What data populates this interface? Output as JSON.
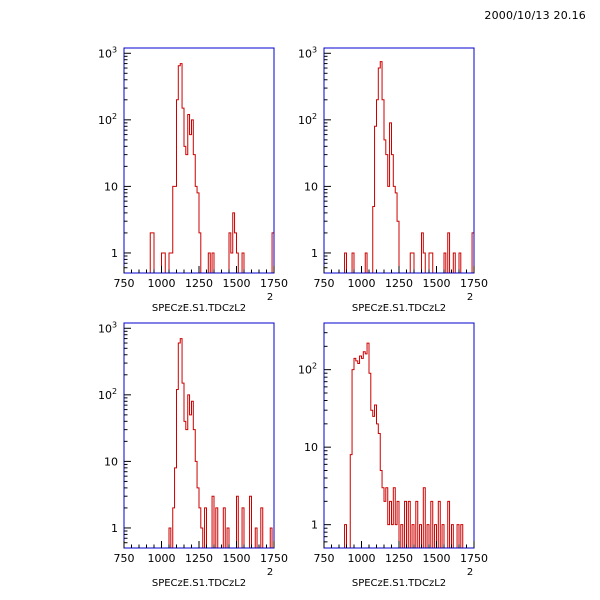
{
  "timestamp": "2000/10/13   20.16",
  "colors": {
    "frame": "#0000cc",
    "hist": "#cc0000",
    "text": "#000000"
  },
  "chart_data": [
    {
      "type": "histogram",
      "xlabel": "SPECzE.S1.TDCzL2",
      "exponent_label": "2",
      "xlim": [
        750,
        1750
      ],
      "xticks": [
        "750",
        "1000",
        "1250",
        "1500",
        "1750"
      ],
      "yscale": "log",
      "ylim": [
        0.5,
        1200
      ],
      "yticks": [
        {
          "value": 1,
          "label": "1",
          "exp": ""
        },
        {
          "value": 10,
          "label": "10",
          "exp": ""
        },
        {
          "value": 100,
          "label": "10",
          "exp": "2"
        },
        {
          "value": 1000,
          "label": "10",
          "exp": "3"
        }
      ],
      "bins": [
        [
          925,
          950,
          2
        ],
        [
          1000,
          1025,
          1
        ],
        [
          1050,
          1075,
          1
        ],
        [
          1075,
          1100,
          10
        ],
        [
          1100,
          1112,
          200
        ],
        [
          1112,
          1125,
          650
        ],
        [
          1125,
          1137,
          700
        ],
        [
          1137,
          1150,
          150
        ],
        [
          1150,
          1162,
          40
        ],
        [
          1162,
          1175,
          30
        ],
        [
          1175,
          1187,
          120
        ],
        [
          1187,
          1200,
          60
        ],
        [
          1200,
          1212,
          100
        ],
        [
          1212,
          1225,
          30
        ],
        [
          1225,
          1237,
          10
        ],
        [
          1237,
          1250,
          8
        ],
        [
          1250,
          1262,
          2
        ],
        [
          1312,
          1325,
          1
        ],
        [
          1337,
          1350,
          1
        ],
        [
          1450,
          1462,
          2
        ],
        [
          1462,
          1475,
          1
        ],
        [
          1475,
          1487,
          4
        ],
        [
          1487,
          1500,
          2
        ],
        [
          1500,
          1512,
          1
        ],
        [
          1537,
          1550,
          1
        ],
        [
          1737,
          1750,
          2
        ]
      ]
    },
    {
      "type": "histogram",
      "xlabel": "SPECzE.S1.TDCzL2",
      "exponent_label": "2",
      "xlim": [
        750,
        1750
      ],
      "xticks": [
        "750",
        "1000",
        "1250",
        "1500",
        "1750"
      ],
      "yscale": "log",
      "ylim": [
        0.5,
        1200
      ],
      "yticks": [
        {
          "value": 1,
          "label": "1",
          "exp": ""
        },
        {
          "value": 10,
          "label": "10",
          "exp": ""
        },
        {
          "value": 100,
          "label": "10",
          "exp": "2"
        },
        {
          "value": 1000,
          "label": "10",
          "exp": "3"
        }
      ],
      "bins": [
        [
          887,
          900,
          1
        ],
        [
          937,
          950,
          1
        ],
        [
          1025,
          1037,
          1
        ],
        [
          1075,
          1087,
          5
        ],
        [
          1087,
          1100,
          80
        ],
        [
          1100,
          1112,
          200
        ],
        [
          1112,
          1125,
          600
        ],
        [
          1125,
          1137,
          750
        ],
        [
          1137,
          1150,
          200
        ],
        [
          1150,
          1162,
          50
        ],
        [
          1162,
          1175,
          30
        ],
        [
          1175,
          1187,
          10
        ],
        [
          1187,
          1200,
          90
        ],
        [
          1200,
          1212,
          30
        ],
        [
          1212,
          1225,
          10
        ],
        [
          1225,
          1237,
          8
        ],
        [
          1237,
          1250,
          3
        ],
        [
          1325,
          1350,
          1
        ],
        [
          1400,
          1412,
          2
        ],
        [
          1412,
          1425,
          1
        ],
        [
          1450,
          1462,
          1
        ],
        [
          1462,
          1475,
          1
        ],
        [
          1550,
          1562,
          1
        ],
        [
          1575,
          1587,
          2
        ],
        [
          1612,
          1625,
          1
        ],
        [
          1650,
          1662,
          1
        ],
        [
          1737,
          1750,
          2
        ]
      ]
    },
    {
      "type": "histogram",
      "xlabel": "SPECzE.S1.TDCzL2",
      "exponent_label": "2",
      "xlim": [
        750,
        1750
      ],
      "xticks": [
        "750",
        "1000",
        "1250",
        "1500",
        "1750"
      ],
      "yscale": "log",
      "ylim": [
        0.5,
        1200
      ],
      "yticks": [
        {
          "value": 1,
          "label": "1",
          "exp": ""
        },
        {
          "value": 10,
          "label": "10",
          "exp": ""
        },
        {
          "value": 100,
          "label": "10",
          "exp": "2"
        },
        {
          "value": 1000,
          "label": "10",
          "exp": "3"
        }
      ],
      "bins": [
        [
          1050,
          1062,
          1
        ],
        [
          1075,
          1087,
          2
        ],
        [
          1087,
          1100,
          8
        ],
        [
          1100,
          1112,
          120
        ],
        [
          1112,
          1125,
          600
        ],
        [
          1125,
          1137,
          700
        ],
        [
          1137,
          1150,
          150
        ],
        [
          1150,
          1162,
          40
        ],
        [
          1162,
          1175,
          30
        ],
        [
          1175,
          1187,
          100
        ],
        [
          1187,
          1200,
          50
        ],
        [
          1200,
          1212,
          80
        ],
        [
          1212,
          1225,
          30
        ],
        [
          1225,
          1237,
          10
        ],
        [
          1237,
          1250,
          4
        ],
        [
          1250,
          1262,
          2
        ],
        [
          1262,
          1275,
          1
        ],
        [
          1287,
          1300,
          2
        ],
        [
          1337,
          1350,
          3
        ],
        [
          1362,
          1375,
          2
        ],
        [
          1412,
          1425,
          2
        ],
        [
          1437,
          1450,
          1
        ],
        [
          1500,
          1512,
          3
        ],
        [
          1537,
          1550,
          2
        ],
        [
          1587,
          1600,
          3
        ],
        [
          1625,
          1637,
          1
        ],
        [
          1662,
          1675,
          2
        ],
        [
          1725,
          1737,
          1
        ]
      ]
    },
    {
      "type": "histogram",
      "xlabel": "SPECzE.S1.TDCzL2",
      "exponent_label": "2",
      "xlim": [
        750,
        1750
      ],
      "xticks": [
        "750",
        "1000",
        "1250",
        "1500",
        "1750"
      ],
      "yscale": "log",
      "ylim": [
        0.5,
        400
      ],
      "yticks": [
        {
          "value": 1,
          "label": "1",
          "exp": ""
        },
        {
          "value": 10,
          "label": "10",
          "exp": ""
        },
        {
          "value": 100,
          "label": "10",
          "exp": "2"
        }
      ],
      "bins": [
        [
          887,
          900,
          1
        ],
        [
          925,
          937,
          8
        ],
        [
          937,
          950,
          100
        ],
        [
          950,
          962,
          140
        ],
        [
          962,
          975,
          130
        ],
        [
          975,
          987,
          120
        ],
        [
          987,
          1000,
          150
        ],
        [
          1000,
          1012,
          140
        ],
        [
          1012,
          1025,
          170
        ],
        [
          1025,
          1037,
          160
        ],
        [
          1037,
          1050,
          220
        ],
        [
          1050,
          1062,
          90
        ],
        [
          1062,
          1075,
          30
        ],
        [
          1075,
          1087,
          25
        ],
        [
          1087,
          1100,
          35
        ],
        [
          1100,
          1112,
          20
        ],
        [
          1112,
          1125,
          15
        ],
        [
          1125,
          1137,
          5
        ],
        [
          1137,
          1150,
          3
        ],
        [
          1150,
          1162,
          2
        ],
        [
          1162,
          1175,
          3
        ],
        [
          1175,
          1187,
          1
        ],
        [
          1187,
          1200,
          2
        ],
        [
          1200,
          1212,
          1
        ],
        [
          1212,
          1225,
          3
        ],
        [
          1225,
          1237,
          1
        ],
        [
          1237,
          1250,
          2
        ],
        [
          1262,
          1275,
          1
        ],
        [
          1287,
          1300,
          2
        ],
        [
          1312,
          1325,
          2
        ],
        [
          1337,
          1350,
          1
        ],
        [
          1362,
          1375,
          2
        ],
        [
          1387,
          1400,
          1
        ],
        [
          1412,
          1425,
          3
        ],
        [
          1437,
          1450,
          1
        ],
        [
          1462,
          1475,
          2
        ],
        [
          1487,
          1500,
          1
        ],
        [
          1512,
          1525,
          2
        ],
        [
          1537,
          1550,
          1
        ],
        [
          1575,
          1587,
          2
        ],
        [
          1600,
          1612,
          1
        ],
        [
          1637,
          1650,
          1
        ],
        [
          1662,
          1675,
          1
        ]
      ]
    }
  ]
}
